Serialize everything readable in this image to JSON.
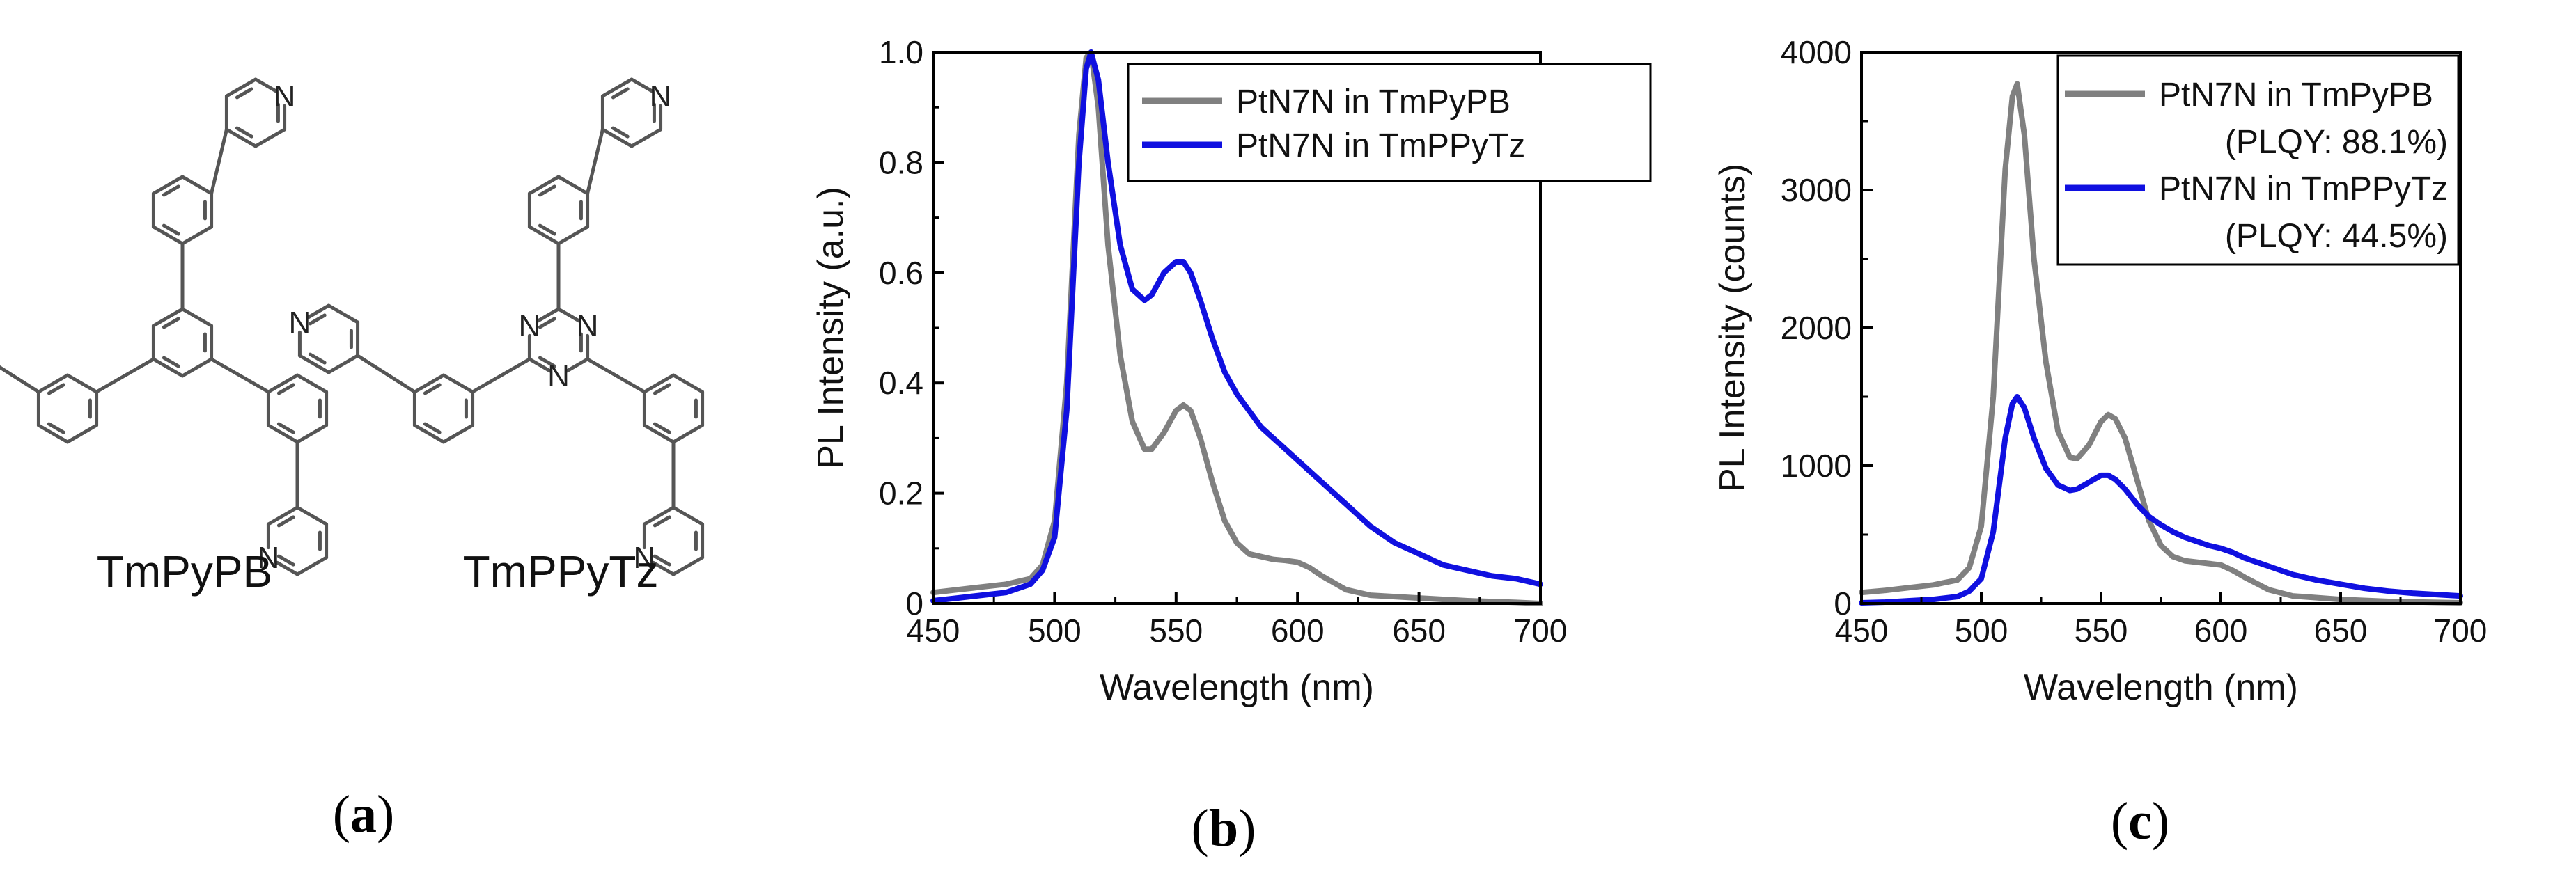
{
  "molecules": {
    "left_label": "TmPyPB",
    "right_label": "TmPPyTz",
    "n_symbol": "N"
  },
  "panel_labels": {
    "a": {
      "open": "(",
      "letter": "a",
      "close": ")"
    },
    "b": {
      "open": "(",
      "letter": "b",
      "close": ")"
    },
    "c": {
      "open": "(",
      "letter": "c",
      "close": ")"
    }
  },
  "chart_data": [
    {
      "type": "line",
      "id": "b",
      "title": "",
      "xlabel": "Wavelength (nm)",
      "ylabel": "PL Intensity (a.u.)",
      "xlim": [
        450,
        700
      ],
      "ylim": [
        0,
        1.0
      ],
      "xticks": [
        450,
        500,
        550,
        600,
        650,
        700
      ],
      "yticks": [
        0,
        0.2,
        0.4,
        0.6,
        0.8,
        1.0
      ],
      "ytick_labels": [
        "0",
        "0.2",
        "0.4",
        "0.6",
        "0.8",
        "1.0"
      ],
      "legend_position": "top-right",
      "series": [
        {
          "name": "PtN7N in TmPyPB",
          "color": "#808080",
          "x": [
            450,
            460,
            470,
            480,
            490,
            495,
            500,
            505,
            510,
            513,
            515,
            518,
            522,
            527,
            532,
            537,
            540,
            545,
            550,
            553,
            556,
            560,
            565,
            570,
            575,
            580,
            585,
            590,
            595,
            600,
            605,
            610,
            620,
            630,
            650,
            670,
            690,
            700
          ],
          "y": [
            0.02,
            0.025,
            0.03,
            0.035,
            0.045,
            0.07,
            0.15,
            0.4,
            0.85,
            0.99,
            1.0,
            0.9,
            0.65,
            0.45,
            0.33,
            0.28,
            0.28,
            0.31,
            0.35,
            0.36,
            0.35,
            0.3,
            0.22,
            0.15,
            0.11,
            0.09,
            0.085,
            0.08,
            0.078,
            0.075,
            0.065,
            0.05,
            0.025,
            0.015,
            0.01,
            0.005,
            0.002,
            0.0
          ]
        },
        {
          "name": "PtN7N in TmPPyTz",
          "color": "#1010e0",
          "x": [
            450,
            460,
            470,
            480,
            490,
            495,
            500,
            505,
            510,
            513,
            515,
            518,
            522,
            527,
            532,
            537,
            540,
            545,
            550,
            553,
            556,
            560,
            565,
            570,
            575,
            580,
            585,
            590,
            595,
            600,
            605,
            610,
            620,
            630,
            640,
            650,
            660,
            670,
            680,
            690,
            700
          ],
          "y": [
            0.005,
            0.01,
            0.015,
            0.02,
            0.035,
            0.06,
            0.12,
            0.35,
            0.8,
            0.97,
            1.0,
            0.95,
            0.8,
            0.65,
            0.57,
            0.55,
            0.56,
            0.6,
            0.62,
            0.62,
            0.6,
            0.55,
            0.48,
            0.42,
            0.38,
            0.35,
            0.32,
            0.3,
            0.28,
            0.26,
            0.24,
            0.22,
            0.18,
            0.14,
            0.11,
            0.09,
            0.07,
            0.06,
            0.05,
            0.045,
            0.035
          ]
        }
      ]
    },
    {
      "type": "line",
      "id": "c",
      "title": "",
      "xlabel": "Wavelength (nm)",
      "ylabel": "PL Intensity (counts)",
      "xlim": [
        450,
        700
      ],
      "ylim": [
        0,
        4000
      ],
      "xticks": [
        450,
        500,
        550,
        600,
        650,
        700
      ],
      "yticks": [
        0,
        1000,
        2000,
        3000,
        4000
      ],
      "ytick_labels": [
        "0",
        "1000",
        "2000",
        "3000",
        "4000"
      ],
      "legend_position": "top-right",
      "series": [
        {
          "name": "PtN7N in TmPyPB",
          "legend_note": "(PLQY: 88.1%)",
          "color": "#808080",
          "x": [
            450,
            460,
            470,
            480,
            490,
            495,
            500,
            505,
            510,
            513,
            515,
            518,
            522,
            527,
            532,
            537,
            540,
            545,
            550,
            553,
            556,
            560,
            565,
            570,
            575,
            580,
            585,
            590,
            595,
            600,
            605,
            610,
            620,
            630,
            650,
            670,
            690,
            700
          ],
          "y": [
            80,
            95,
            115,
            135,
            170,
            260,
            560,
            1500,
            3150,
            3680,
            3770,
            3400,
            2500,
            1750,
            1250,
            1060,
            1050,
            1150,
            1320,
            1370,
            1340,
            1200,
            900,
            600,
            420,
            340,
            310,
            300,
            290,
            280,
            240,
            190,
            100,
            55,
            30,
            15,
            8,
            5
          ]
        },
        {
          "name": "PtN7N in TmPPyTz",
          "legend_note": "(PLQY: 44.5%)",
          "color": "#1010e0",
          "x": [
            450,
            460,
            470,
            480,
            490,
            495,
            500,
            505,
            510,
            513,
            515,
            518,
            522,
            527,
            532,
            537,
            540,
            545,
            550,
            553,
            556,
            560,
            565,
            570,
            575,
            580,
            585,
            590,
            595,
            600,
            605,
            610,
            620,
            630,
            640,
            650,
            660,
            670,
            680,
            690,
            700
          ],
          "y": [
            5,
            10,
            20,
            30,
            50,
            90,
            180,
            520,
            1200,
            1450,
            1500,
            1420,
            1200,
            980,
            860,
            820,
            830,
            880,
            930,
            930,
            900,
            830,
            720,
            630,
            570,
            520,
            480,
            450,
            420,
            400,
            370,
            330,
            270,
            210,
            170,
            140,
            110,
            90,
            75,
            65,
            55
          ]
        }
      ]
    }
  ]
}
